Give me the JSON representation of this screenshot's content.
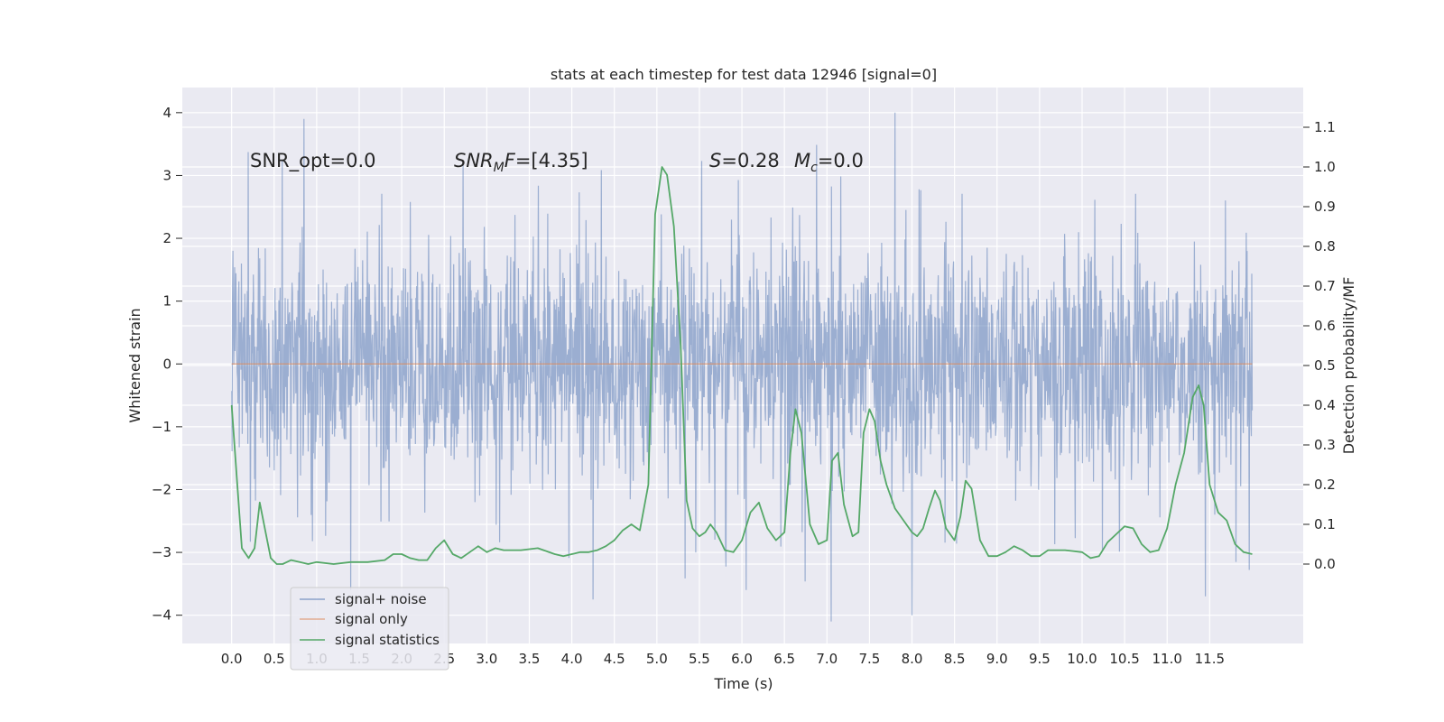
{
  "chart_data": {
    "type": "line",
    "title": "stats at each timestep for test data 12946 [signal=0]",
    "xlabel": "Time (s)",
    "ylabel": "Whitened strain",
    "ylabel_right": "Detection probability/MF",
    "xlim": [
      -0.58,
      12.6
    ],
    "ylim": [
      -4.45,
      4.4
    ],
    "ylim_right": [
      -0.2,
      1.2
    ],
    "xticks": [
      0.0,
      0.5,
      1.0,
      1.5,
      2.0,
      2.5,
      3.0,
      3.5,
      4.0,
      4.5,
      5.0,
      5.5,
      6.0,
      6.5,
      7.0,
      7.5,
      8.0,
      8.5,
      9.0,
      9.5,
      10.0,
      10.5,
      11.0,
      11.5
    ],
    "xtick_labels": [
      "0.0",
      "0.5",
      "1.0",
      "1.5",
      "2.0",
      "2.5",
      "3.0",
      "3.5",
      "4.0",
      "4.5",
      "5.0",
      "5.5",
      "6.0",
      "6.5",
      "7.0",
      "7.5",
      "8.0",
      "8.5",
      "9.0",
      "9.5",
      "10.0",
      "10.5",
      "11.0",
      "11.5"
    ],
    "yticks": [
      -4,
      -3,
      -2,
      -1,
      0,
      1,
      2,
      3,
      4
    ],
    "ytick_labels": [
      "−4",
      "−3",
      "−2",
      "−1",
      "0",
      "1",
      "2",
      "3",
      "4"
    ],
    "yticks_right": [
      0.0,
      0.1,
      0.2,
      0.3,
      0.4,
      0.5,
      0.6,
      0.7,
      0.8,
      0.9,
      1.0,
      1.1
    ],
    "ytick_labels_right": [
      "0.0",
      "0.1",
      "0.2",
      "0.3",
      "0.4",
      "0.5",
      "0.6",
      "0.7",
      "0.8",
      "0.9",
      "1.0",
      "1.1"
    ],
    "grid": true,
    "legend_position": "lower-left",
    "annotations": {
      "snr_opt": "SNR_opt=0.0",
      "snr_mf_name": "SNR",
      "snr_mf_sub": "M",
      "snr_mf_tail": "F=[4.35]",
      "s_name": "S",
      "s_value": "=0.28",
      "mc_name": "M",
      "mc_sub": "c",
      "mc_value": "=0.0"
    },
    "series": [
      {
        "name": "signal+ noise",
        "axis": "left",
        "color": "#4c72b0",
        "style": "dense-noise",
        "time_range": [
          0.0,
          12.0
        ],
        "typical_band": [
          -1.9,
          1.9
        ],
        "peak_excursions": [
          {
            "t": 0.85,
            "v": 3.9
          },
          {
            "t": 7.8,
            "v": 4.0
          },
          {
            "t": 7.05,
            "v": -4.1
          },
          {
            "t": 8.0,
            "v": -4.0
          },
          {
            "t": 11.45,
            "v": -3.7
          },
          {
            "t": 4.25,
            "v": -3.75
          },
          {
            "t": 6.05,
            "v": -3.6
          },
          {
            "t": 1.4,
            "v": -3.6
          }
        ]
      },
      {
        "name": "signal only",
        "axis": "left",
        "color": "#dd8452",
        "x": [
          0.0,
          12.0
        ],
        "y": [
          0.0,
          0.0
        ]
      },
      {
        "name": "signal statistics",
        "axis": "right",
        "color": "#55a868",
        "x": [
          0.0,
          0.06,
          0.12,
          0.2,
          0.27,
          0.33,
          0.4,
          0.46,
          0.53,
          0.6,
          0.7,
          0.8,
          0.9,
          1.0,
          1.2,
          1.4,
          1.6,
          1.8,
          1.9,
          2.0,
          2.1,
          2.2,
          2.3,
          2.4,
          2.5,
          2.6,
          2.7,
          2.8,
          2.9,
          3.0,
          3.1,
          3.2,
          3.4,
          3.6,
          3.8,
          3.9,
          4.0,
          4.1,
          4.2,
          4.3,
          4.4,
          4.5,
          4.6,
          4.7,
          4.8,
          4.9,
          4.98,
          5.06,
          5.12,
          5.2,
          5.28,
          5.35,
          5.42,
          5.5,
          5.57,
          5.63,
          5.7,
          5.8,
          5.9,
          6.0,
          6.1,
          6.2,
          6.3,
          6.4,
          6.5,
          6.57,
          6.63,
          6.7,
          6.8,
          6.9,
          7.0,
          7.06,
          7.13,
          7.2,
          7.3,
          7.37,
          7.43,
          7.5,
          7.56,
          7.63,
          7.7,
          7.8,
          7.9,
          8.0,
          8.06,
          8.13,
          8.2,
          8.27,
          8.33,
          8.4,
          8.5,
          8.57,
          8.63,
          8.7,
          8.8,
          8.9,
          9.0,
          9.1,
          9.2,
          9.3,
          9.4,
          9.5,
          9.6,
          9.8,
          10.0,
          10.1,
          10.2,
          10.3,
          10.4,
          10.5,
          10.6,
          10.7,
          10.8,
          10.9,
          11.0,
          11.1,
          11.2,
          11.3,
          11.37,
          11.43,
          11.5,
          11.6,
          11.7,
          11.8,
          11.9,
          12.0
        ],
        "y": [
          0.4,
          0.22,
          0.04,
          0.015,
          0.04,
          0.155,
          0.08,
          0.015,
          0.0,
          0.0,
          0.01,
          0.005,
          0.0,
          0.005,
          0.0,
          0.005,
          0.005,
          0.01,
          0.025,
          0.025,
          0.015,
          0.01,
          0.01,
          0.04,
          0.06,
          0.025,
          0.015,
          0.03,
          0.045,
          0.03,
          0.04,
          0.035,
          0.035,
          0.04,
          0.025,
          0.02,
          0.025,
          0.03,
          0.03,
          0.035,
          0.045,
          0.06,
          0.085,
          0.1,
          0.085,
          0.2,
          0.88,
          1.0,
          0.98,
          0.85,
          0.55,
          0.16,
          0.09,
          0.07,
          0.08,
          0.1,
          0.08,
          0.035,
          0.03,
          0.06,
          0.13,
          0.155,
          0.09,
          0.06,
          0.08,
          0.28,
          0.39,
          0.33,
          0.1,
          0.05,
          0.06,
          0.26,
          0.28,
          0.15,
          0.07,
          0.08,
          0.33,
          0.39,
          0.36,
          0.26,
          0.2,
          0.14,
          0.11,
          0.08,
          0.07,
          0.09,
          0.14,
          0.185,
          0.16,
          0.09,
          0.06,
          0.12,
          0.21,
          0.19,
          0.06,
          0.02,
          0.02,
          0.03,
          0.045,
          0.035,
          0.02,
          0.02,
          0.035,
          0.035,
          0.03,
          0.015,
          0.02,
          0.055,
          0.075,
          0.095,
          0.09,
          0.05,
          0.03,
          0.035,
          0.09,
          0.2,
          0.28,
          0.42,
          0.45,
          0.4,
          0.2,
          0.13,
          0.11,
          0.05,
          0.03,
          0.025
        ]
      }
    ]
  }
}
